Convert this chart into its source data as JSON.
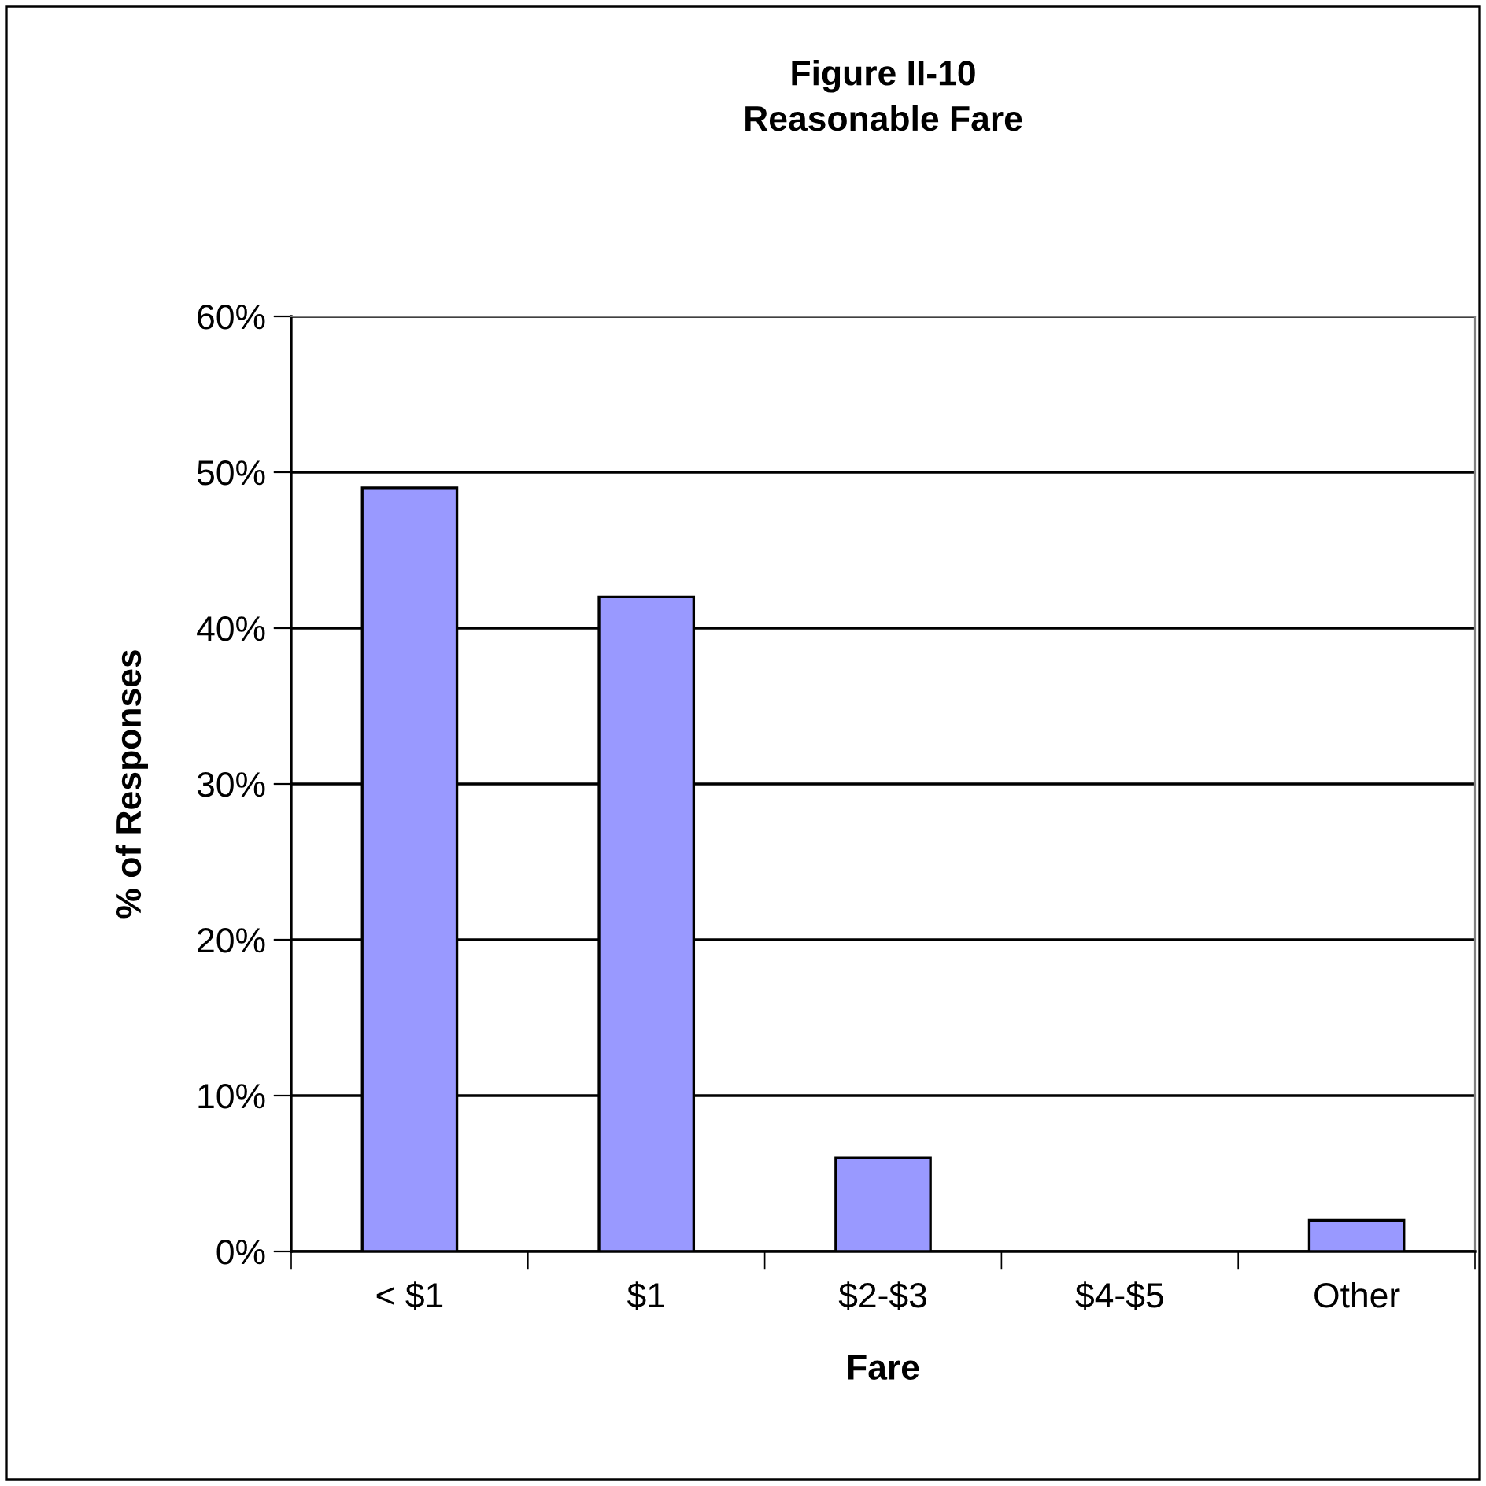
{
  "chart_data": {
    "type": "bar",
    "title": "Figure II-10\nReasonable Fare",
    "xlabel": "Fare",
    "ylabel": "% of Responses",
    "categories": [
      "< $1",
      "$1",
      "$2-$3",
      "$4-$5",
      "Other"
    ],
    "values": [
      49,
      42,
      6,
      0,
      2
    ],
    "color": "#9999ff",
    "ylim": [
      0,
      60
    ],
    "yticks": [
      {
        "value": 0,
        "label": "0%"
      },
      {
        "value": 10,
        "label": "10%"
      },
      {
        "value": 20,
        "label": "20%"
      },
      {
        "value": 30,
        "label": "30%"
      },
      {
        "value": 40,
        "label": "40%"
      },
      {
        "value": 50,
        "label": "50%"
      },
      {
        "value": 60,
        "label": "60%"
      }
    ],
    "grid": "y",
    "legend": false
  }
}
